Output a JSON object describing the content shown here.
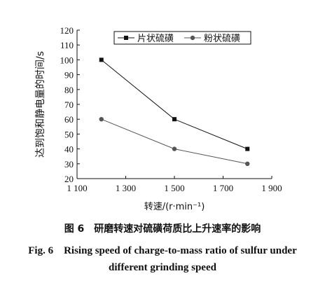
{
  "chart_data": {
    "type": "line",
    "x": [
      1200,
      1500,
      1800
    ],
    "series": [
      {
        "name": "片状硫磺",
        "values": [
          100,
          60,
          40
        ],
        "color": "#111111",
        "marker": "square"
      },
      {
        "name": "粉状硫磺",
        "values": [
          60,
          40,
          30
        ],
        "color": "#555555",
        "marker": "circle"
      }
    ],
    "xlabel": "转速/(r·min⁻¹)",
    "ylabel": "达到饱和静电量的时间/s",
    "xlim": [
      1100,
      1900
    ],
    "ylim": [
      20,
      120
    ],
    "xticks": [
      1100,
      1300,
      1500,
      1700,
      1900
    ],
    "xtick_labels": [
      "1 100",
      "1 300",
      "1 500",
      "1 700",
      "1 900"
    ],
    "yticks": [
      20,
      30,
      40,
      50,
      60,
      70,
      80,
      90,
      100,
      110,
      120
    ],
    "legend_position": "top-right",
    "grid": false
  },
  "caption": {
    "cn": "图 6　研磨转速对硫磺荷质比上升速率的影响",
    "en_line1": "Fig. 6　Rising speed of charge-to-mass ratio of sulfur under",
    "en_line2": "different grinding speed"
  }
}
